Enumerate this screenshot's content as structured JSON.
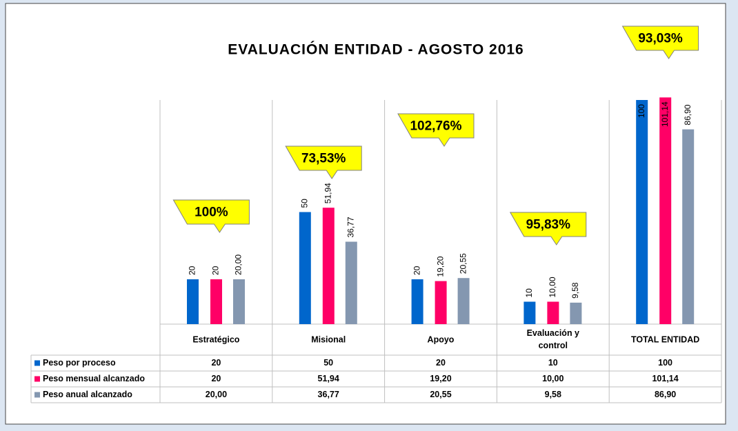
{
  "chart_data": {
    "type": "bar",
    "title": "EVALUACIÓN ENTIDAD - AGOSTO 2016",
    "categories": [
      "Estratégico",
      "Misional",
      "Apoyo",
      "Evaluación y control",
      "TOTAL ENTIDAD"
    ],
    "series": [
      {
        "name": "Peso por proceso",
        "color": "#0066cc",
        "values": [
          20,
          50,
          20,
          10,
          100
        ]
      },
      {
        "name": "Peso mensual alcanzado",
        "color": "#ff0066",
        "values": [
          20,
          51.94,
          19.2,
          10,
          101.14
        ],
        "value_labels": [
          "20",
          "51,94",
          "19,20",
          "10,00",
          "101,14"
        ]
      },
      {
        "name": "Peso anual alcanzado",
        "color": "#8497b0",
        "values": [
          20,
          36.77,
          20.55,
          9.58,
          86.9
        ],
        "value_labels": [
          "20,00",
          "36,77",
          "20,55",
          "9,58",
          "86,90"
        ]
      }
    ],
    "annotations": [
      "100%",
      "73,53%",
      "102,76%",
      "95,83%",
      "93,03%"
    ],
    "ylim": [
      0,
      100
    ]
  }
}
